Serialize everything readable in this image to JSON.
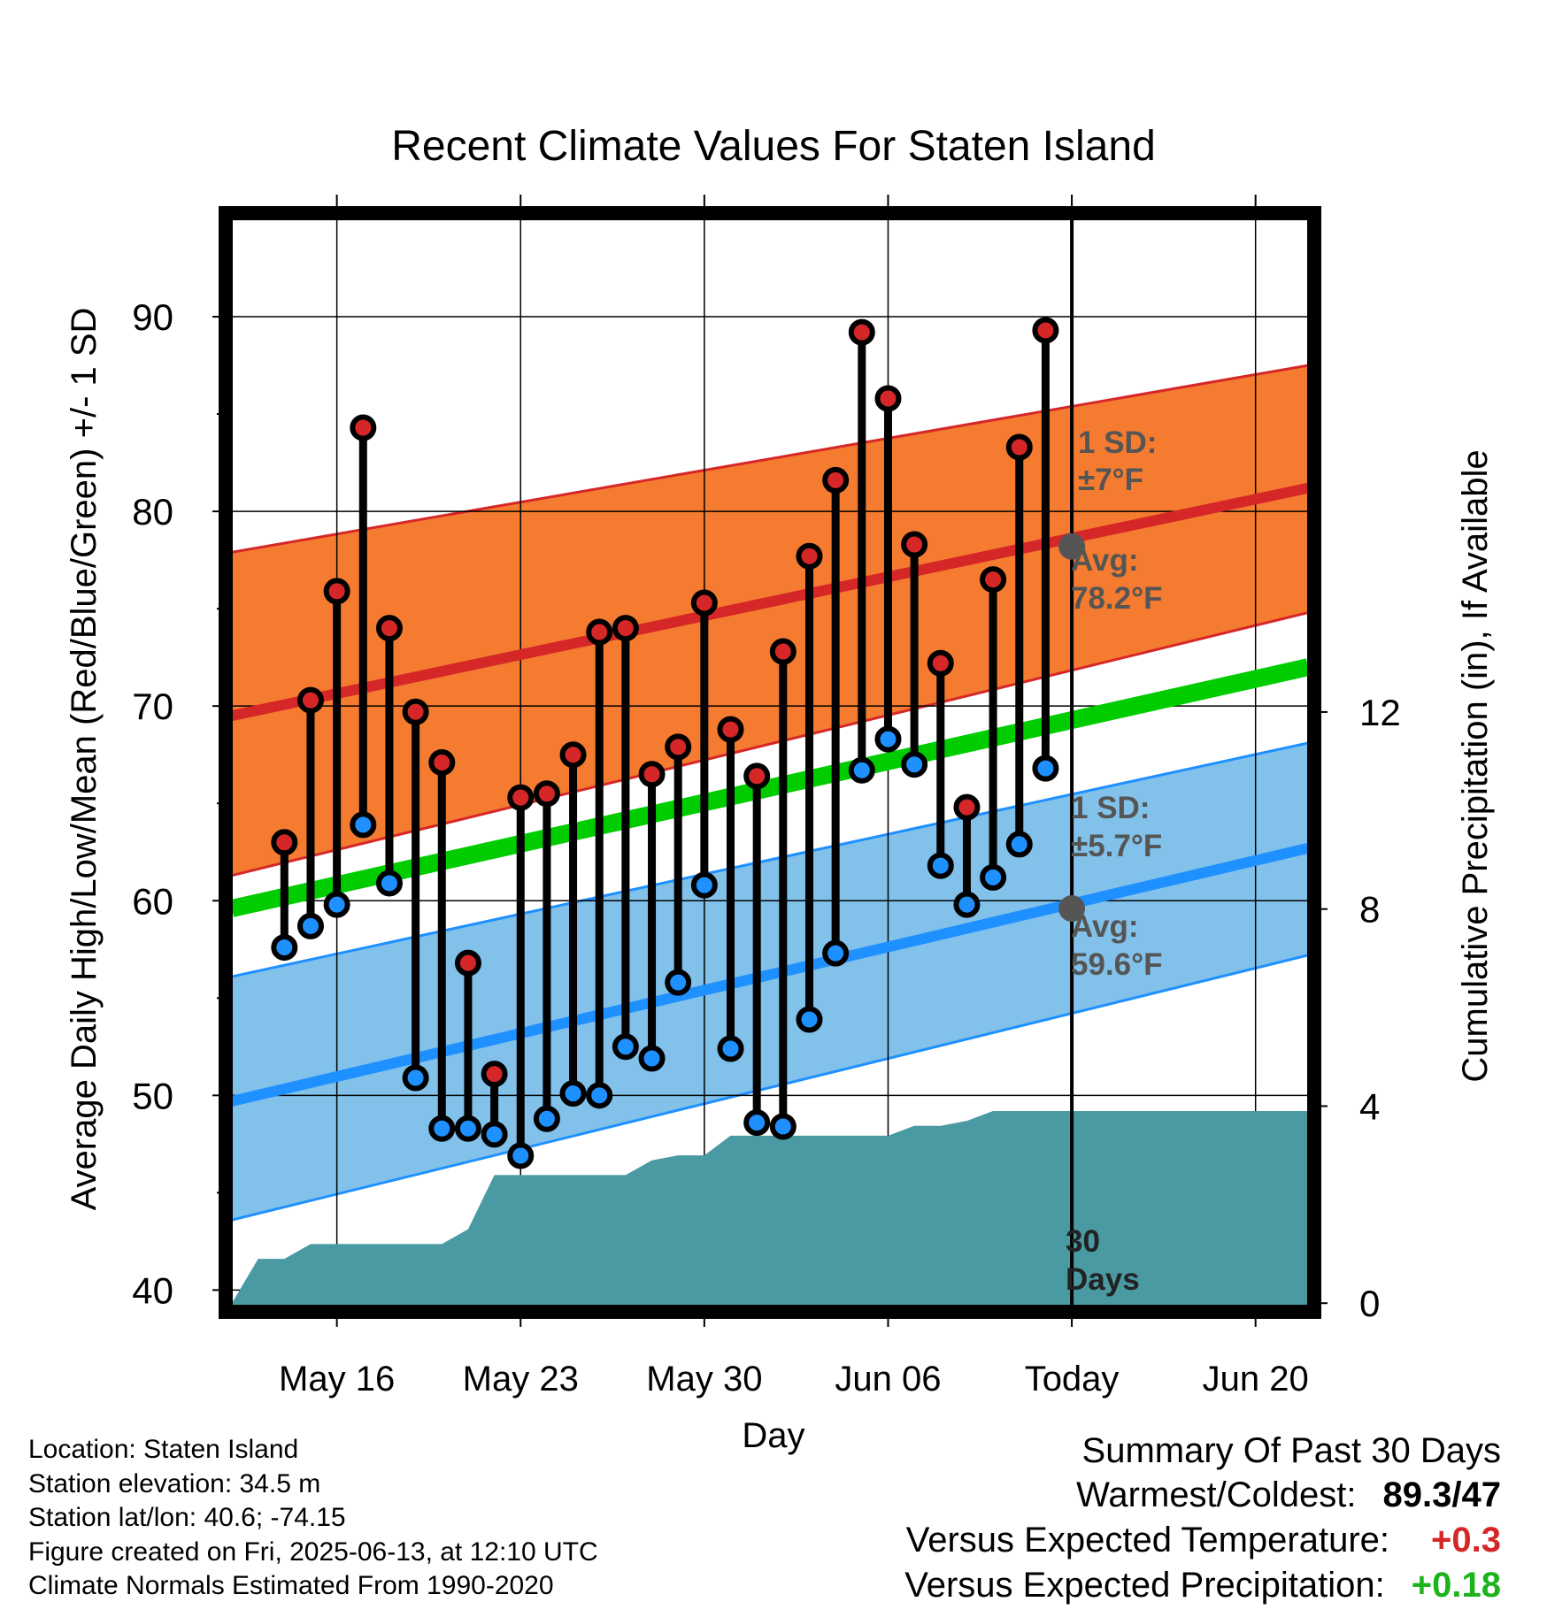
{
  "chart_data": {
    "type": "line",
    "title": "Recent Climate Values For Staten Island",
    "xlabel": "Day",
    "ylabel": "Average Daily High/Low/Mean (Red/Blue/Green) +/- 1 SD",
    "y2label": "Cumulative Precipitation (in), If Available",
    "ylim": [
      39.2,
      95
    ],
    "y2lim": [
      -0.05,
      22
    ],
    "xlim": [
      "2025-05-12",
      "2025-06-22"
    ],
    "yticks": [
      40,
      50,
      60,
      70,
      80,
      90
    ],
    "y2ticks": [
      0,
      4,
      8,
      12
    ],
    "xticks": [
      {
        "date": "2025-05-16",
        "label": "May 16"
      },
      {
        "date": "2025-05-23",
        "label": "May 23"
      },
      {
        "date": "2025-05-30",
        "label": "May 30"
      },
      {
        "date": "2025-06-06",
        "label": "Jun 06"
      },
      {
        "date": "2025-06-13",
        "label": "Today"
      },
      {
        "date": "2025-06-20",
        "label": "Jun 20"
      }
    ],
    "grid": true,
    "dates": [
      "2025-05-14",
      "2025-05-15",
      "2025-05-16",
      "2025-05-17",
      "2025-05-18",
      "2025-05-19",
      "2025-05-20",
      "2025-05-21",
      "2025-05-22",
      "2025-05-23",
      "2025-05-24",
      "2025-05-25",
      "2025-05-26",
      "2025-05-27",
      "2025-05-28",
      "2025-05-29",
      "2025-05-30",
      "2025-05-31",
      "2025-06-01",
      "2025-06-02",
      "2025-06-03",
      "2025-06-04",
      "2025-06-05",
      "2025-06-06",
      "2025-06-07",
      "2025-06-08",
      "2025-06-09",
      "2025-06-10",
      "2025-06-11",
      "2025-06-12"
    ],
    "series": [
      {
        "name": "High",
        "color": "#d62728",
        "values": [
          63.0,
          70.3,
          75.9,
          84.3,
          74.0,
          69.7,
          67.1,
          56.8,
          51.1,
          65.3,
          65.5,
          67.5,
          73.8,
          74.0,
          66.5,
          67.9,
          75.3,
          68.8,
          66.4,
          72.8,
          77.7,
          81.6,
          89.2,
          85.8,
          78.3,
          72.2,
          64.8,
          76.5,
          83.3,
          89.3
        ]
      },
      {
        "name": "Low",
        "color": "#1e90ff",
        "values": [
          57.6,
          58.7,
          59.8,
          63.9,
          60.9,
          50.9,
          48.3,
          48.3,
          48.0,
          46.9,
          48.8,
          50.1,
          50.0,
          52.5,
          51.9,
          55.8,
          60.8,
          52.4,
          48.6,
          48.4,
          53.9,
          57.3,
          66.7,
          68.3,
          67.0,
          61.8,
          59.8,
          61.2,
          62.9,
          66.8
        ]
      }
    ],
    "normals": {
      "dates": [
        "2025-05-12",
        "2025-06-22"
      ],
      "high_mean": [
        69.5,
        81.2
      ],
      "high_upper": [
        77.9,
        87.5
      ],
      "high_lower": [
        61.3,
        74.8
      ],
      "low_mean": [
        49.7,
        62.7
      ],
      "low_upper": [
        56.1,
        68.1
      ],
      "low_lower": [
        43.6,
        57.2
      ],
      "green_mean": [
        59.6,
        72.0
      ],
      "high_color": "#f47b30",
      "high_line_color": "#d62728",
      "low_color": "#82c1ea",
      "low_line_color": "#1e90ff",
      "mean_color": "#00cc00"
    },
    "precipitation": {
      "color": "#4a9aa3",
      "dates": [
        "2025-05-12",
        "2025-05-12",
        "2025-05-12",
        "2025-05-13",
        "2025-05-14",
        "2025-05-15",
        "2025-05-16",
        "2025-05-17",
        "2025-05-18",
        "2025-05-19",
        "2025-05-20",
        "2025-05-21",
        "2025-05-22",
        "2025-05-23",
        "2025-05-24",
        "2025-05-25",
        "2025-05-26",
        "2025-05-27",
        "2025-05-28",
        "2025-05-29",
        "2025-05-30",
        "2025-05-31",
        "2025-06-01",
        "2025-06-02",
        "2025-06-03",
        "2025-06-04",
        "2025-06-05",
        "2025-06-06",
        "2025-06-07",
        "2025-06-08",
        "2025-06-09",
        "2025-06-10",
        "2025-06-22"
      ],
      "values": [
        0,
        0,
        0,
        0.9,
        0.9,
        1.2,
        1.2,
        1.2,
        1.2,
        1.2,
        1.2,
        1.5,
        2.6,
        2.6,
        2.6,
        2.6,
        2.6,
        2.6,
        2.9,
        3.0,
        3.0,
        3.4,
        3.4,
        3.4,
        3.4,
        3.4,
        3.4,
        3.4,
        3.6,
        3.6,
        3.7,
        3.9,
        3.9
      ]
    },
    "annotations": {
      "today_date": "2025-06-13",
      "high_sd_label": "1 SD:",
      "high_sd_value": "±7°F",
      "high_avg_label": "Avg:",
      "high_avg_value": "78.2°F",
      "high_avg": 78.2,
      "low_sd_label": "1 SD:",
      "low_sd_value": "±5.7°F",
      "low_avg_label": "Avg:",
      "low_avg_value": "59.6°F",
      "low_avg": 59.6,
      "days_line1": "30",
      "days_line2": "Days"
    }
  },
  "meta": {
    "location": "Location: Staten Island",
    "elevation": "Station elevation: 34.5 m",
    "latlon": "Station lat/lon: 40.6; -74.15",
    "created": "Figure created on Fri, 2025-06-13, at 12:10 UTC",
    "normals": "Climate Normals Estimated From 1990-2020"
  },
  "summary": {
    "heading": "Summary Of Past 30 Days",
    "warmest_label": "Warmest/Coldest:",
    "warmest_value": "89.3/47",
    "temp_label": "Versus Expected Temperature:",
    "temp_value": "+0.3",
    "temp_color": "#d62728",
    "precip_label": "Versus Expected Precipitation:",
    "precip_value": "+0.18",
    "precip_color": "#1db31d"
  }
}
